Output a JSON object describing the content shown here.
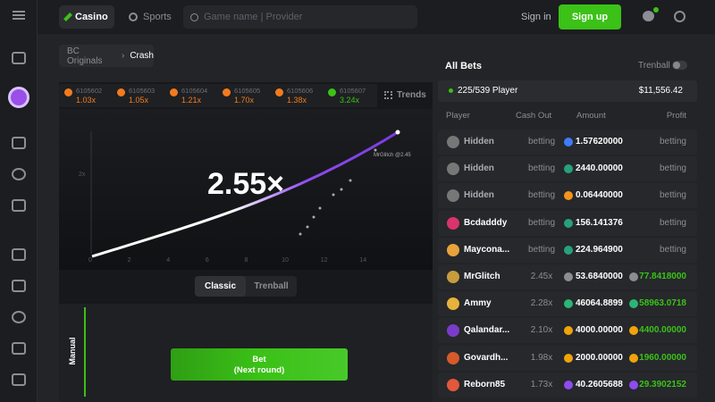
{
  "header": {
    "tabs": [
      "Casino",
      "Sports"
    ],
    "search_placeholder": "Game name | Provider",
    "sign_in": "Sign in",
    "sign_up": "Sign up"
  },
  "breadcrumb": [
    "BC Originals",
    "Crash"
  ],
  "game": {
    "history": [
      {
        "id": "6105602",
        "multiplier": "1.03x",
        "color": "#f37b1d"
      },
      {
        "id": "6105603",
        "multiplier": "1.05x",
        "color": "#f37b1d"
      },
      {
        "id": "6105604",
        "multiplier": "1.21x",
        "color": "#f37b1d"
      },
      {
        "id": "6105605",
        "multiplier": "1.70x",
        "color": "#f37b1d"
      },
      {
        "id": "6105606",
        "multiplier": "1.38x",
        "color": "#f37b1d"
      },
      {
        "id": "6105607",
        "multiplier": "3.24x",
        "color": "#3bc117"
      }
    ],
    "trends": "Trends",
    "current_multiplier": "2.55×",
    "x_axis_labels": [
      "0",
      "2",
      "4",
      "6",
      "8",
      "10",
      "12",
      "14"
    ],
    "y_axis_label": "2x",
    "curve_labels": [
      "MrGlitch @2.45"
    ],
    "modes": [
      "Classic",
      "Trenball"
    ],
    "bet_mode": "Manual",
    "bet_button": {
      "label": "Bet",
      "sub": "(Next round)"
    }
  },
  "bets": {
    "title": "All Bets",
    "toggle": "Trenball",
    "players": "225/539 Player",
    "total": "$11,556.42",
    "columns": [
      "Player",
      "Cash Out",
      "Amount",
      "Profit"
    ],
    "rows": [
      {
        "player": "Hidden",
        "cash_out": "betting",
        "amount": "1.57620000",
        "profit": "betting",
        "coin": "#3f7cf6",
        "avatar": "#777"
      },
      {
        "player": "Hidden",
        "cash_out": "betting",
        "amount": "2440.00000",
        "profit": "betting",
        "coin": "#26a17b",
        "avatar": "#777"
      },
      {
        "player": "Hidden",
        "cash_out": "betting",
        "amount": "0.06440000",
        "profit": "betting",
        "coin": "#f7931a",
        "avatar": "#777"
      },
      {
        "player": "Bcdadddy",
        "cash_out": "betting",
        "amount": "156.141376",
        "profit": "betting",
        "coin": "#26a17b",
        "avatar": "#d9346b"
      },
      {
        "player": "Maycona...",
        "cash_out": "betting",
        "amount": "224.964900",
        "profit": "betting",
        "coin": "#26a17b",
        "avatar": "#e8a33a"
      },
      {
        "player": "MrGlitch",
        "cash_out": "2.45x",
        "amount": "53.6840000",
        "profit": "77.8418000",
        "coin": "#8a8d93",
        "avatar": "#c89b3c"
      },
      {
        "player": "Ammy",
        "cash_out": "2.28x",
        "amount": "46064.8899",
        "profit": "58963.0718",
        "coin": "#2bb673",
        "avatar": "#e7b23a"
      },
      {
        "player": "Qalandar...",
        "cash_out": "2.10x",
        "amount": "4000.00000",
        "profit": "4400.00000",
        "coin": "#f0a30a",
        "avatar": "#7a3cc8"
      },
      {
        "player": "Govardh...",
        "cash_out": "1.98x",
        "amount": "2000.00000",
        "profit": "1960.00000",
        "coin": "#f0a30a",
        "avatar": "#d65a2a"
      },
      {
        "player": "Reborn85",
        "cash_out": "1.73x",
        "amount": "40.2605688",
        "profit": "29.3902152",
        "coin": "#8e4cf0",
        "avatar": "#e2583a"
      }
    ]
  }
}
